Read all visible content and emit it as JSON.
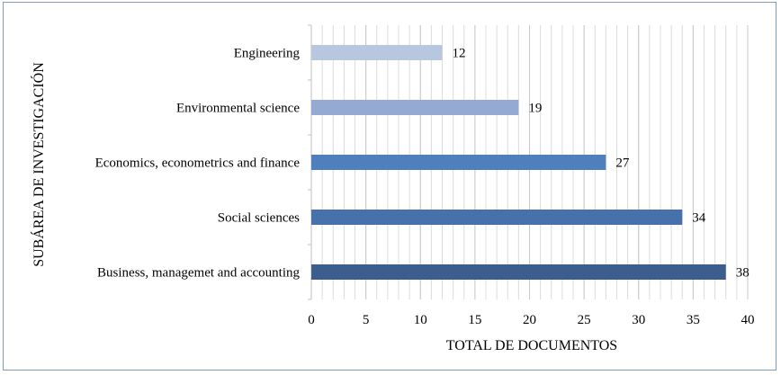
{
  "chart_data": {
    "type": "bar",
    "orientation": "horizontal",
    "categories": [
      "Engineering",
      "Environmental science",
      "Economics, econometrics and finance",
      "Social sciences",
      "Business, managemet and accounting"
    ],
    "values": [
      12,
      19,
      27,
      34,
      38
    ],
    "colors": [
      "#b8c7e0",
      "#94aad2",
      "#4f7fbd",
      "#4671aa",
      "#3c5e8e"
    ],
    "xlabel": "TOTAL DE DOCUMENTOS",
    "ylabel": "SUBÁREA DE INVESTIGACIÓN",
    "xlim": [
      0,
      40
    ],
    "xticks": [
      0,
      5,
      10,
      15,
      20,
      25,
      30,
      35,
      40
    ],
    "grid": "vertical",
    "data_labels": true
  }
}
